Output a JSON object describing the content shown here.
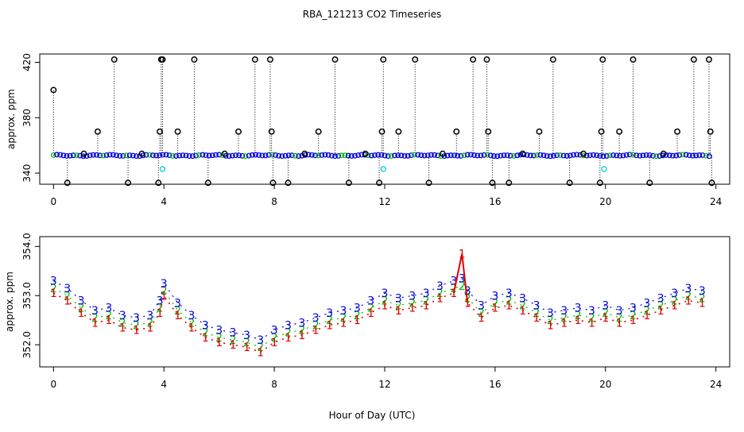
{
  "title": "RBA_121213  CO2 Timeseries",
  "xlabel": "Hour of Day (UTC)",
  "colors": {
    "black": "#000000",
    "series1": "#dd0000",
    "series2": "#00bb00",
    "series3": "#0000dd",
    "cyan": "#00cccc",
    "axis": "#000000"
  },
  "chart_data": [
    {
      "type": "scatter",
      "name": "top-panel",
      "ylabel": "approx. ppm",
      "xlim": [
        -0.5,
        24.5
      ],
      "ylim": [
        332,
        426
      ],
      "xticks": [
        0,
        4,
        8,
        12,
        16,
        20,
        24
      ],
      "yticks": [
        340,
        380,
        420
      ],
      "baseline": 352.8,
      "spikes": [
        [
          0.0,
          400
        ],
        [
          0.5,
          333
        ],
        [
          1.1,
          354
        ],
        [
          1.6,
          370
        ],
        [
          2.2,
          422
        ],
        [
          2.7,
          333
        ],
        [
          3.2,
          354
        ],
        [
          3.8,
          333
        ],
        [
          3.85,
          370
        ],
        [
          3.9,
          422
        ],
        [
          3.95,
          422
        ],
        [
          4.5,
          370
        ],
        [
          5.1,
          422
        ],
        [
          5.6,
          333
        ],
        [
          6.2,
          354
        ],
        [
          6.7,
          370
        ],
        [
          7.3,
          422
        ],
        [
          7.85,
          422
        ],
        [
          7.9,
          370
        ],
        [
          7.95,
          333
        ],
        [
          8.5,
          333
        ],
        [
          9.1,
          354
        ],
        [
          9.6,
          370
        ],
        [
          10.2,
          422
        ],
        [
          10.7,
          333
        ],
        [
          11.3,
          354
        ],
        [
          11.8,
          333
        ],
        [
          11.9,
          370
        ],
        [
          11.95,
          422
        ],
        [
          12.5,
          370
        ],
        [
          13.1,
          422
        ],
        [
          13.6,
          333
        ],
        [
          14.1,
          354
        ],
        [
          14.6,
          370
        ],
        [
          15.2,
          422
        ],
        [
          15.7,
          422
        ],
        [
          15.75,
          370
        ],
        [
          15.9,
          333
        ],
        [
          16.5,
          333
        ],
        [
          17.0,
          354
        ],
        [
          17.6,
          370
        ],
        [
          18.1,
          422
        ],
        [
          18.7,
          333
        ],
        [
          19.2,
          354
        ],
        [
          19.8,
          333
        ],
        [
          19.85,
          370
        ],
        [
          19.9,
          422
        ],
        [
          20.5,
          370
        ],
        [
          21.0,
          422
        ],
        [
          21.6,
          333
        ],
        [
          22.1,
          354
        ],
        [
          22.6,
          370
        ],
        [
          23.2,
          422
        ],
        [
          23.75,
          422
        ],
        [
          23.8,
          370
        ],
        [
          23.85,
          333
        ]
      ],
      "cyan_points": [
        [
          3.95,
          343
        ],
        [
          11.95,
          343
        ],
        [
          19.95,
          343
        ]
      ]
    },
    {
      "type": "line",
      "name": "bottom-panel",
      "ylabel": "approx. ppm",
      "xlim": [
        -0.5,
        24.5
      ],
      "ylim": [
        351.55,
        354.2
      ],
      "xticks": [
        0,
        4,
        8,
        12,
        16,
        20,
        24
      ],
      "yticks": [
        352.0,
        353.0,
        354.0
      ],
      "x": [
        0.0,
        0.5,
        1.0,
        1.5,
        2.0,
        2.5,
        3.0,
        3.5,
        3.85,
        4.0,
        4.5,
        5.0,
        5.5,
        6.0,
        6.5,
        7.0,
        7.5,
        8.0,
        8.5,
        9.0,
        9.5,
        10.0,
        10.5,
        11.0,
        11.5,
        12.0,
        12.5,
        13.0,
        13.5,
        14.0,
        14.5,
        14.8,
        15.0,
        15.5,
        16.0,
        16.5,
        17.0,
        17.5,
        18.0,
        18.5,
        19.0,
        19.5,
        20.0,
        20.5,
        21.0,
        21.5,
        22.0,
        22.5,
        23.0,
        23.5
      ],
      "series": [
        {
          "name": "1",
          "offset": -0.15,
          "values": [
            353.2,
            353.05,
            352.8,
            352.6,
            352.65,
            352.5,
            352.45,
            352.5,
            352.8,
            353.15,
            352.75,
            352.5,
            352.3,
            352.2,
            352.15,
            352.1,
            352.0,
            352.2,
            352.3,
            352.35,
            352.45,
            352.55,
            352.6,
            352.65,
            352.8,
            352.95,
            352.85,
            352.9,
            352.95,
            353.1,
            353.2,
            354.0,
            353.0,
            352.7,
            352.9,
            352.95,
            352.85,
            352.7,
            352.55,
            352.6,
            352.65,
            352.6,
            352.7,
            352.6,
            352.65,
            352.75,
            352.85,
            352.95,
            353.05,
            353.0
          ]
        },
        {
          "name": "2",
          "offset": -0.05,
          "values": [
            353.2,
            353.05,
            352.8,
            352.6,
            352.65,
            352.5,
            352.45,
            352.5,
            352.8,
            353.15,
            352.75,
            352.5,
            352.3,
            352.2,
            352.15,
            352.1,
            352.0,
            352.2,
            352.3,
            352.35,
            352.45,
            352.55,
            352.6,
            352.65,
            352.8,
            352.95,
            352.85,
            352.9,
            352.95,
            353.1,
            353.2,
            353.25,
            353.0,
            352.7,
            352.9,
            352.95,
            352.85,
            352.7,
            352.55,
            352.6,
            352.65,
            352.6,
            352.7,
            352.6,
            352.65,
            352.75,
            352.85,
            352.95,
            353.05,
            353.0
          ]
        },
        {
          "name": "3",
          "offset": 0.1,
          "values": [
            353.2,
            353.05,
            352.8,
            352.6,
            352.65,
            352.5,
            352.45,
            352.5,
            352.8,
            353.15,
            352.75,
            352.5,
            352.3,
            352.2,
            352.15,
            352.1,
            352.0,
            352.2,
            352.3,
            352.35,
            352.45,
            352.55,
            352.6,
            352.65,
            352.8,
            352.95,
            352.85,
            352.9,
            352.95,
            353.1,
            353.2,
            353.25,
            353.0,
            352.7,
            352.9,
            352.95,
            352.85,
            352.7,
            352.55,
            352.6,
            352.65,
            352.6,
            352.7,
            352.6,
            352.65,
            352.75,
            352.85,
            352.95,
            353.05,
            353.0
          ]
        }
      ]
    }
  ]
}
